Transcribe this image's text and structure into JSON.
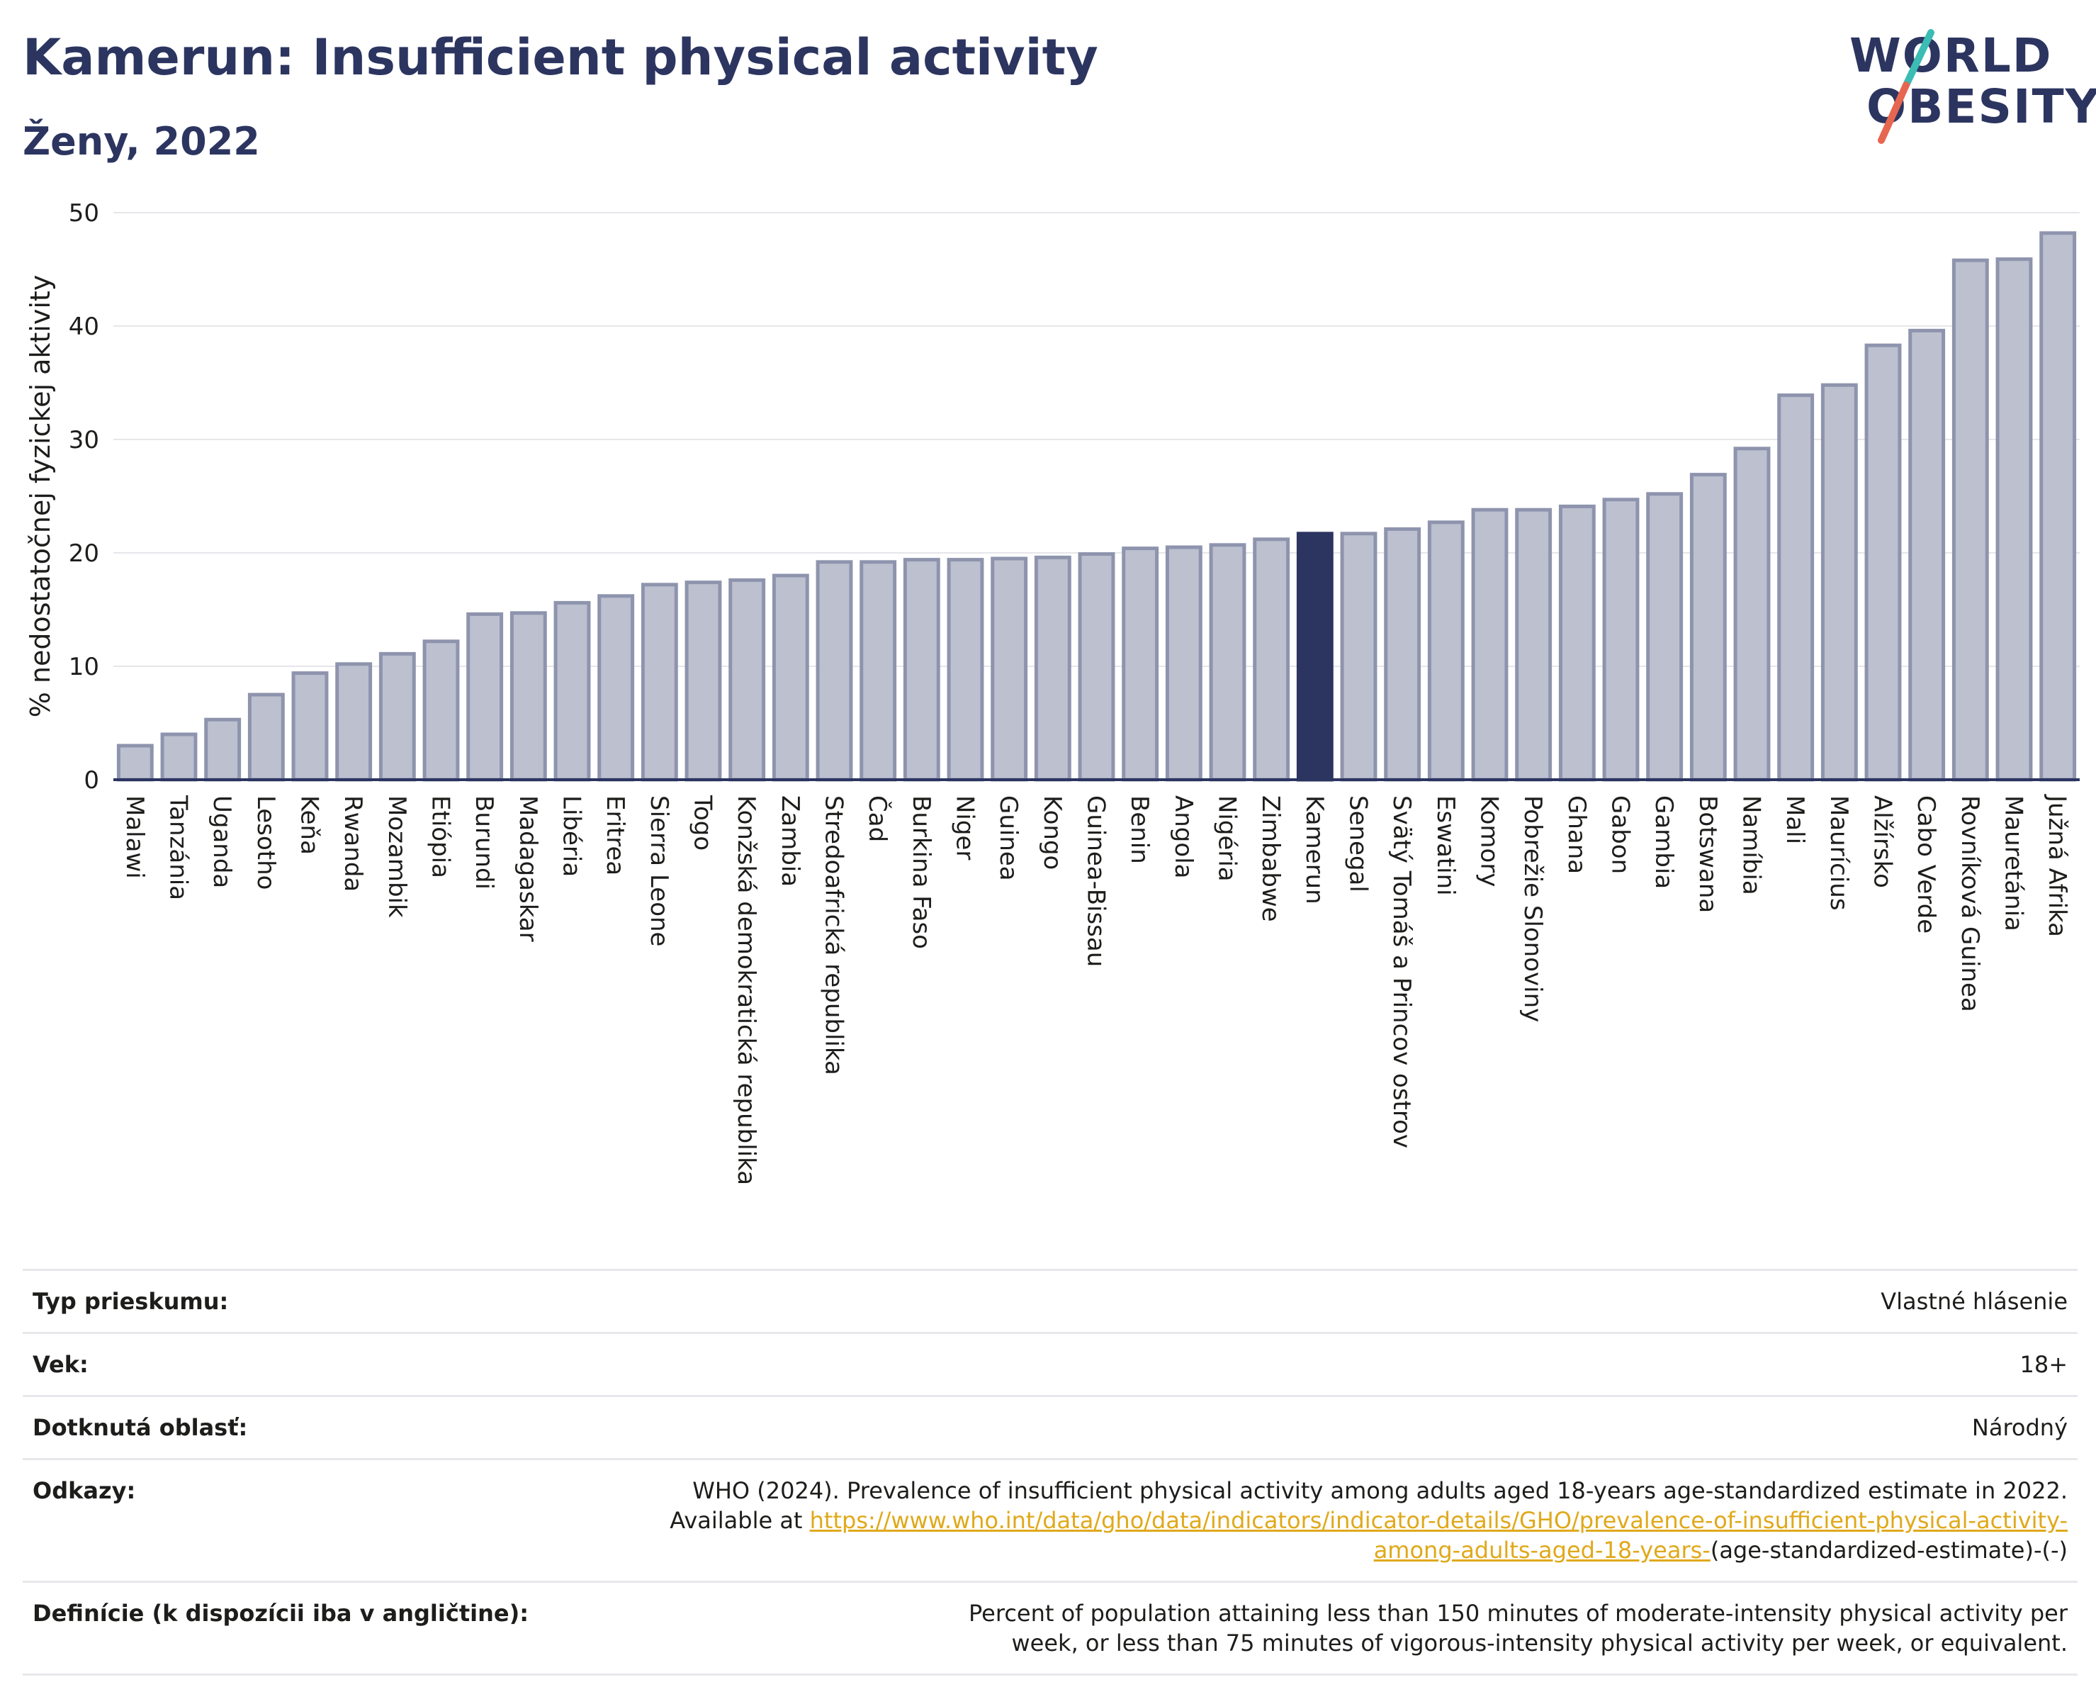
{
  "header": {
    "title": "Kamerun: Insufficient physical activity",
    "subtitle": "Ženy, 2022"
  },
  "logo": {
    "line1": "WORLD",
    "line2": "OBESITY"
  },
  "colors": {
    "bar_fill": "#bcc0cf",
    "bar_stroke": "#8e94ad",
    "highlight": "#2c3560",
    "title": "#2c3560",
    "link": "#e0a91b",
    "logo_slash_teal": "#3bbcb4",
    "logo_slash_red": "#e7664f"
  },
  "chart_data": {
    "type": "bar",
    "ylabel": "% nedostatočnej fyzickej aktivity",
    "ylim": [
      0,
      50
    ],
    "yticks": [
      0,
      10,
      20,
      30,
      40,
      50
    ],
    "grid": true,
    "highlight_category": "Kamerun",
    "categories": [
      "Malawi",
      "Tanzánia",
      "Uganda",
      "Lesotho",
      "Keňa",
      "Rwanda",
      "Mozambik",
      "Etiópia",
      "Burundi",
      "Madagaskar",
      "Libéria",
      "Eritrea",
      "Sierra Leone",
      "Togo",
      "Konžská demokratická republika",
      "Zambia",
      "Stredoafrická republika",
      "Čad",
      "Burkina Faso",
      "Niger",
      "Guinea",
      "Kongo",
      "Guinea-Bissau",
      "Benin",
      "Angola",
      "Nigéria",
      "Zimbabwe",
      "Kamerun",
      "Senegal",
      "Svätý Tomáš a Princov ostrov",
      "Eswatini",
      "Komory",
      "Pobrežie Slonoviny",
      "Ghana",
      "Gabon",
      "Gambia",
      "Botswana",
      "Namíbia",
      "Mali",
      "Maurícius",
      "Alžírsko",
      "Cabo Verde",
      "Rovníková Guinea",
      "Mauretánia",
      "Južná Afrika"
    ],
    "values": [
      3.0,
      4.0,
      5.3,
      7.5,
      9.4,
      10.2,
      11.1,
      12.2,
      14.6,
      14.7,
      15.6,
      16.2,
      17.2,
      17.4,
      17.6,
      18.0,
      19.2,
      19.2,
      19.4,
      19.4,
      19.5,
      19.6,
      19.9,
      20.4,
      20.5,
      20.7,
      21.2,
      21.7,
      21.7,
      22.1,
      22.7,
      23.8,
      23.8,
      24.1,
      24.7,
      25.2,
      26.9,
      29.2,
      33.9,
      34.8,
      38.3,
      39.6,
      45.8,
      45.9,
      48.2
    ]
  },
  "info": {
    "survey_type": {
      "label": "Typ prieskumu:",
      "value": "Vlastné hlásenie"
    },
    "age": {
      "label": "Vek:",
      "value": "18+"
    },
    "area": {
      "label": "Dotknutá oblasť:",
      "value": "Národný"
    },
    "references": {
      "label": "Odkazy:",
      "text": "WHO (2024). Prevalence of insufficient physical activity among adults aged 18-years age-standardized estimate in 2022. Available at",
      "link": "https://www.who.int/data/gho/data/indicators/indicator-details/GHO/prevalence-of-insufficient-physical-activity-among-adults-aged-18-years-",
      "suffix": "(age-standardized-estimate)-(-)"
    },
    "definition": {
      "label": "Definície (k dispozícii iba v angličtine):",
      "value": "Percent of population attaining less than 150 minutes of moderate-intensity physical activity per week, or less than 75 minutes of vigorous-intensity physical activity per week, or equivalent."
    }
  }
}
